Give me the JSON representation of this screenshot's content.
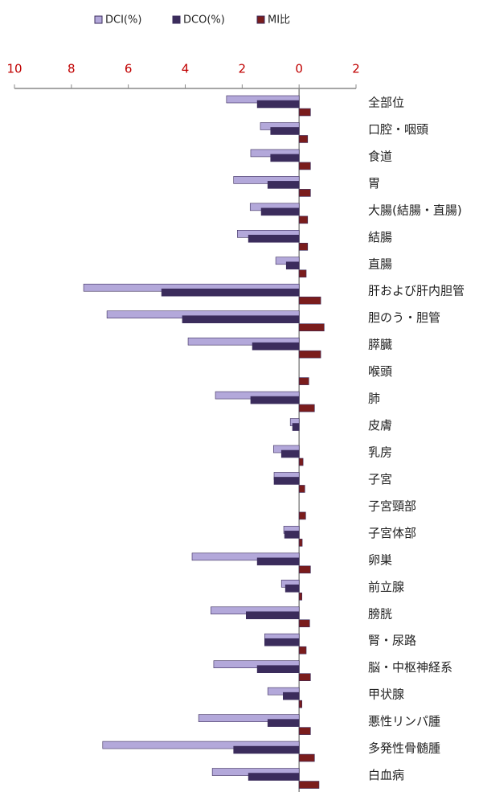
{
  "chart_data": {
    "type": "hbar",
    "categories": [
      "全部位",
      "口腔・咽頭",
      "食道",
      "胃",
      "大腸(結腸・直腸)",
      "結腸",
      "直腸",
      "肝および肝内胆管",
      "胆のう・胆管",
      "膵臓",
      "喉頭",
      "肺",
      "皮膚",
      "乳房",
      "子宮",
      "子宮頸部",
      "子宮体部",
      "卵巣",
      "前立腺",
      "膀胱",
      "腎・尿路",
      "脳・中枢神経系",
      "甲状腺",
      "悪性リンパ腫",
      "多発性骨髄腫",
      "白血病"
    ],
    "series": [
      {
        "name": "DCI(%)",
        "color": "#b3a8da",
        "values": [
          -2.55,
          -1.36,
          -1.7,
          -2.3,
          -1.72,
          -2.17,
          -0.82,
          -7.57,
          -6.75,
          -3.9,
          0,
          -2.94,
          -0.31,
          -0.9,
          -0.88,
          0,
          -0.54,
          -3.76,
          -0.62,
          -3.1,
          -1.21,
          -3.0,
          -1.1,
          -3.53,
          -6.9,
          -3.05
        ]
      },
      {
        "name": "DCO(%)",
        "color": "#3b2c5c",
        "values": [
          -1.47,
          -1.0,
          -1.0,
          -1.1,
          -1.33,
          -1.78,
          -0.45,
          -4.83,
          -4.1,
          -1.64,
          0,
          -1.7,
          -0.23,
          -0.62,
          -0.88,
          0,
          -0.51,
          -1.47,
          -0.48,
          -1.86,
          -1.21,
          -1.47,
          -0.56,
          -1.1,
          -2.3,
          -1.78
        ]
      },
      {
        "name": "MI比",
        "color": "#7a1c1c",
        "values": [
          0.4,
          0.3,
          0.4,
          0.4,
          0.3,
          0.3,
          0.25,
          0.76,
          0.88,
          0.76,
          0.34,
          0.54,
          0,
          0.14,
          0.2,
          0.23,
          0.11,
          0.4,
          0.1,
          0.37,
          0.25,
          0.4,
          0.1,
          0.4,
          0.54,
          0.7
        ]
      }
    ],
    "xlim": [
      -10,
      2
    ],
    "xticks": [
      {
        "value": -10,
        "label": "10"
      },
      {
        "value": -8,
        "label": "8"
      },
      {
        "value": -6,
        "label": "6"
      },
      {
        "value": -4,
        "label": "4"
      },
      {
        "value": -2,
        "label": "2"
      },
      0,
      2
    ],
    "tick_color": "#c00000"
  }
}
